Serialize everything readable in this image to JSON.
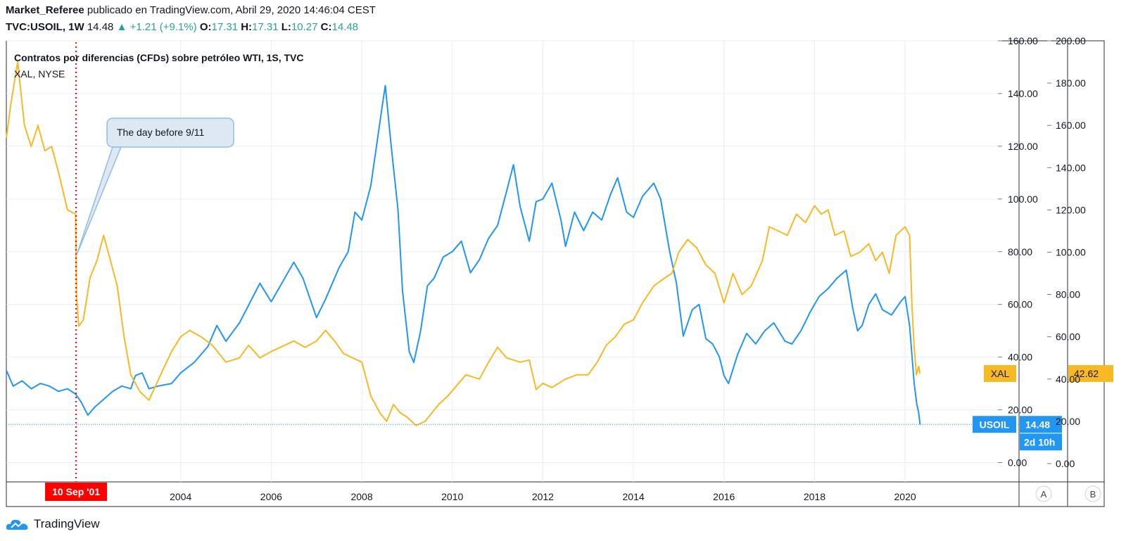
{
  "header": {
    "author": "Market_Referee",
    "published": "publicado en TradingView.com, Abril 29, 2020 14:46:04 CEST",
    "symbol": "TVC:USOIL, 1W",
    "last": "14.48",
    "change": "+1.21 (+9.1%)",
    "o_label": "O:",
    "o": "17.31",
    "h_label": "H:",
    "h": "17.31",
    "l_label": "L:",
    "l": "10.27",
    "c_label": "C:",
    "c": "14.48"
  },
  "brand": "TradingView",
  "colors": {
    "usoil": "#2196f3",
    "xal": "#f7b924",
    "marker": "#ff0000",
    "grid": "#e9edf2",
    "pane_border": "#2a2e39"
  },
  "chart_data": {
    "type": "line",
    "title": "Contratos por diferencias (CFDs) sobre petróleo WTI, 1S, TVC",
    "subtitle": "XAL, NYSE",
    "x_ticks": [
      "2004",
      "2006",
      "2008",
      "2010",
      "2012",
      "2014",
      "2016",
      "2018",
      "2020"
    ],
    "x_range": [
      2000.15,
      2022.05
    ],
    "axis_a": {
      "ticks": [
        "0.00",
        "20.00",
        "40.00",
        "60.00",
        "80.00",
        "100.00",
        "120.00",
        "140.00",
        "160.00"
      ],
      "range": [
        -2,
        160
      ]
    },
    "axis_b": {
      "ticks": [
        "200.00",
        "180.00",
        "160.00",
        "140.00",
        "120.00",
        "100.00",
        "80.00",
        "60.00",
        "40.00",
        "20.00",
        "0.00"
      ],
      "range": [
        -2,
        200
      ]
    },
    "axis_a_label": "A",
    "axis_b_label": "B",
    "series": [
      {
        "name": "USOIL",
        "axis": "A",
        "last_value": "14.48",
        "countdown": "2d 10h",
        "points": [
          [
            2000.15,
            35
          ],
          [
            2000.3,
            29
          ],
          [
            2000.5,
            31
          ],
          [
            2000.7,
            28
          ],
          [
            2000.9,
            30
          ],
          [
            2001.1,
            29
          ],
          [
            2001.3,
            27
          ],
          [
            2001.5,
            28
          ],
          [
            2001.68,
            26
          ],
          [
            2001.8,
            23
          ],
          [
            2001.95,
            18
          ],
          [
            2002.1,
            21
          ],
          [
            2002.3,
            24
          ],
          [
            2002.5,
            27
          ],
          [
            2002.7,
            29
          ],
          [
            2002.9,
            28
          ],
          [
            2003.0,
            33
          ],
          [
            2003.15,
            34
          ],
          [
            2003.3,
            28
          ],
          [
            2003.5,
            29
          ],
          [
            2003.8,
            30
          ],
          [
            2004.0,
            34
          ],
          [
            2004.3,
            38
          ],
          [
            2004.6,
            44
          ],
          [
            2004.8,
            52
          ],
          [
            2005.0,
            46
          ],
          [
            2005.3,
            53
          ],
          [
            2005.6,
            63
          ],
          [
            2005.75,
            68
          ],
          [
            2006.0,
            61
          ],
          [
            2006.3,
            70
          ],
          [
            2006.5,
            76
          ],
          [
            2006.7,
            70
          ],
          [
            2006.9,
            60
          ],
          [
            2007.0,
            55
          ],
          [
            2007.2,
            62
          ],
          [
            2007.5,
            74
          ],
          [
            2007.7,
            80
          ],
          [
            2007.85,
            95
          ],
          [
            2008.0,
            92
          ],
          [
            2008.2,
            105
          ],
          [
            2008.45,
            135
          ],
          [
            2008.52,
            143
          ],
          [
            2008.65,
            120
          ],
          [
            2008.8,
            96
          ],
          [
            2008.9,
            65
          ],
          [
            2009.05,
            42
          ],
          [
            2009.15,
            38
          ],
          [
            2009.3,
            50
          ],
          [
            2009.45,
            67
          ],
          [
            2009.6,
            70
          ],
          [
            2009.8,
            78
          ],
          [
            2010.0,
            80
          ],
          [
            2010.2,
            84
          ],
          [
            2010.4,
            72
          ],
          [
            2010.6,
            77
          ],
          [
            2010.8,
            85
          ],
          [
            2011.0,
            90
          ],
          [
            2011.2,
            103
          ],
          [
            2011.35,
            113
          ],
          [
            2011.5,
            97
          ],
          [
            2011.7,
            84
          ],
          [
            2011.85,
            99
          ],
          [
            2012.0,
            100
          ],
          [
            2012.2,
            106
          ],
          [
            2012.4,
            92
          ],
          [
            2012.5,
            82
          ],
          [
            2012.7,
            95
          ],
          [
            2012.9,
            88
          ],
          [
            2013.1,
            95
          ],
          [
            2013.3,
            92
          ],
          [
            2013.5,
            102
          ],
          [
            2013.65,
            108
          ],
          [
            2013.85,
            95
          ],
          [
            2014.0,
            93
          ],
          [
            2014.2,
            101
          ],
          [
            2014.45,
            106
          ],
          [
            2014.6,
            100
          ],
          [
            2014.8,
            80
          ],
          [
            2014.95,
            68
          ],
          [
            2015.1,
            48
          ],
          [
            2015.3,
            58
          ],
          [
            2015.45,
            60
          ],
          [
            2015.6,
            47
          ],
          [
            2015.75,
            45
          ],
          [
            2015.9,
            40
          ],
          [
            2016.0,
            33
          ],
          [
            2016.1,
            30
          ],
          [
            2016.3,
            41
          ],
          [
            2016.5,
            49
          ],
          [
            2016.7,
            45
          ],
          [
            2016.9,
            50
          ],
          [
            2017.1,
            53
          ],
          [
            2017.35,
            46
          ],
          [
            2017.5,
            45
          ],
          [
            2017.7,
            50
          ],
          [
            2017.9,
            57
          ],
          [
            2018.1,
            63
          ],
          [
            2018.3,
            66
          ],
          [
            2018.5,
            70
          ],
          [
            2018.7,
            73
          ],
          [
            2018.85,
            58
          ],
          [
            2018.95,
            50
          ],
          [
            2019.05,
            52
          ],
          [
            2019.2,
            60
          ],
          [
            2019.35,
            64
          ],
          [
            2019.5,
            58
          ],
          [
            2019.7,
            56
          ],
          [
            2019.9,
            61
          ],
          [
            2020.0,
            63
          ],
          [
            2020.1,
            52
          ],
          [
            2020.2,
            30
          ],
          [
            2020.26,
            22
          ],
          [
            2020.3,
            19
          ],
          [
            2020.33,
            14.48
          ]
        ]
      },
      {
        "name": "XAL",
        "axis": "B",
        "last_value": "42.62",
        "points": [
          [
            2000.15,
            154
          ],
          [
            2000.25,
            170
          ],
          [
            2000.4,
            190
          ],
          [
            2000.55,
            160
          ],
          [
            2000.7,
            150
          ],
          [
            2000.85,
            160
          ],
          [
            2001.0,
            148
          ],
          [
            2001.15,
            150
          ],
          [
            2001.3,
            138
          ],
          [
            2001.5,
            120
          ],
          [
            2001.68,
            118
          ],
          [
            2001.7,
            80
          ],
          [
            2001.75,
            65
          ],
          [
            2001.85,
            68
          ],
          [
            2002.0,
            88
          ],
          [
            2002.15,
            96
          ],
          [
            2002.3,
            108
          ],
          [
            2002.45,
            96
          ],
          [
            2002.6,
            84
          ],
          [
            2002.75,
            60
          ],
          [
            2002.9,
            42
          ],
          [
            2003.1,
            34
          ],
          [
            2003.3,
            30
          ],
          [
            2003.6,
            44
          ],
          [
            2003.8,
            53
          ],
          [
            2004.0,
            60
          ],
          [
            2004.2,
            63
          ],
          [
            2004.45,
            60
          ],
          [
            2004.7,
            56
          ],
          [
            2004.85,
            52
          ],
          [
            2005.0,
            48
          ],
          [
            2005.3,
            50
          ],
          [
            2005.5,
            56
          ],
          [
            2005.75,
            50
          ],
          [
            2006.0,
            53
          ],
          [
            2006.3,
            56
          ],
          [
            2006.5,
            58
          ],
          [
            2006.75,
            55
          ],
          [
            2007.0,
            58
          ],
          [
            2007.2,
            63
          ],
          [
            2007.4,
            58
          ],
          [
            2007.6,
            52
          ],
          [
            2007.8,
            50
          ],
          [
            2008.0,
            48
          ],
          [
            2008.2,
            32
          ],
          [
            2008.4,
            24
          ],
          [
            2008.55,
            20
          ],
          [
            2008.7,
            28
          ],
          [
            2008.85,
            24
          ],
          [
            2009.0,
            22
          ],
          [
            2009.2,
            18
          ],
          [
            2009.4,
            20
          ],
          [
            2009.55,
            24
          ],
          [
            2009.7,
            28
          ],
          [
            2009.9,
            32
          ],
          [
            2010.1,
            37
          ],
          [
            2010.3,
            42
          ],
          [
            2010.6,
            40
          ],
          [
            2010.8,
            48
          ],
          [
            2011.0,
            55
          ],
          [
            2011.2,
            50
          ],
          [
            2011.5,
            48
          ],
          [
            2011.7,
            49
          ],
          [
            2011.85,
            35
          ],
          [
            2012.0,
            38
          ],
          [
            2012.2,
            36
          ],
          [
            2012.5,
            40
          ],
          [
            2012.75,
            42
          ],
          [
            2013.0,
            42
          ],
          [
            2013.2,
            48
          ],
          [
            2013.4,
            56
          ],
          [
            2013.6,
            60
          ],
          [
            2013.8,
            66
          ],
          [
            2014.0,
            68
          ],
          [
            2014.2,
            76
          ],
          [
            2014.45,
            84
          ],
          [
            2014.7,
            88
          ],
          [
            2014.85,
            90
          ],
          [
            2015.0,
            100
          ],
          [
            2015.2,
            106
          ],
          [
            2015.4,
            102
          ],
          [
            2015.6,
            94
          ],
          [
            2015.8,
            90
          ],
          [
            2016.0,
            76
          ],
          [
            2016.2,
            90
          ],
          [
            2016.4,
            80
          ],
          [
            2016.6,
            84
          ],
          [
            2016.85,
            96
          ],
          [
            2017.0,
            112
          ],
          [
            2017.2,
            110
          ],
          [
            2017.4,
            108
          ],
          [
            2017.6,
            118
          ],
          [
            2017.8,
            114
          ],
          [
            2018.0,
            122
          ],
          [
            2018.15,
            118
          ],
          [
            2018.3,
            120
          ],
          [
            2018.45,
            108
          ],
          [
            2018.65,
            110
          ],
          [
            2018.8,
            98
          ],
          [
            2019.0,
            100
          ],
          [
            2019.2,
            104
          ],
          [
            2019.35,
            96
          ],
          [
            2019.5,
            100
          ],
          [
            2019.65,
            90
          ],
          [
            2019.8,
            108
          ],
          [
            2020.0,
            112
          ],
          [
            2020.1,
            108
          ],
          [
            2020.15,
            75
          ],
          [
            2020.2,
            55
          ],
          [
            2020.25,
            42
          ],
          [
            2020.3,
            46
          ],
          [
            2020.33,
            42.62
          ]
        ]
      }
    ],
    "annotations": {
      "event_label": "10 Sep '01",
      "event_x": 2001.69,
      "callout_text": "The day before 9/11"
    }
  }
}
